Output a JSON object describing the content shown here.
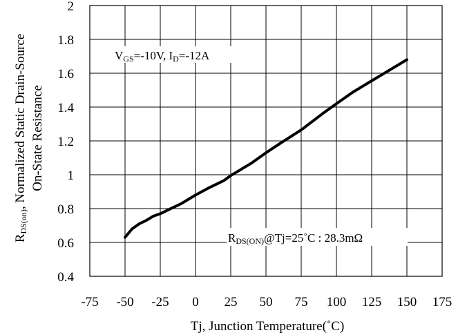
{
  "chart_data": {
    "type": "line",
    "xlabel": "Tj, Junction Temperature(˚C)",
    "ylabel_line1_main": "R",
    "ylabel_line1_sub": "DS(on)",
    "ylabel_line1_rest": ", Normalized Static Drain-Source",
    "ylabel_line2": "On-State Resistance",
    "xlim": [
      -75,
      175
    ],
    "ylim": [
      0.4,
      2.0
    ],
    "x_ticks": [
      -75,
      -50,
      -25,
      0,
      25,
      50,
      75,
      100,
      125,
      150,
      175
    ],
    "y_ticks": [
      0.4,
      0.6,
      0.8,
      1,
      1.2,
      1.4,
      1.6,
      1.8,
      2
    ],
    "x_tick_labels": [
      "-75",
      "-50",
      "-25",
      "0",
      "25",
      "50",
      "75",
      "100",
      "125",
      "150",
      "175"
    ],
    "y_tick_labels": [
      "0.4",
      "0.6",
      "0.8",
      "1",
      "1.2",
      "1.4",
      "1.6",
      "1.8",
      "2"
    ],
    "grid": true,
    "series": [
      {
        "x": [
          -50,
          -45,
          -40,
          -35,
          -30,
          -25,
          -20,
          -15,
          -10,
          -5,
          0,
          10,
          20,
          25,
          40,
          50,
          60,
          75,
          90,
          100,
          112,
          125,
          137,
          150
        ],
        "y": [
          0.63,
          0.68,
          0.71,
          0.73,
          0.755,
          0.77,
          0.79,
          0.81,
          0.83,
          0.855,
          0.88,
          0.925,
          0.965,
          0.995,
          1.07,
          1.13,
          1.185,
          1.265,
          1.36,
          1.42,
          1.49,
          1.555,
          1.615,
          1.68
        ]
      }
    ],
    "annotations": {
      "conditions": {
        "v_main": "V",
        "v_sub": "GS",
        "v_rest": "=-10V, I",
        "i_sub": "D",
        "i_rest": "=-12A"
      },
      "reference": {
        "r_main": "R",
        "r_sub": "DS(ON)",
        "r_rest": "@Tj=25˚C : 28.3mΩ"
      }
    }
  }
}
